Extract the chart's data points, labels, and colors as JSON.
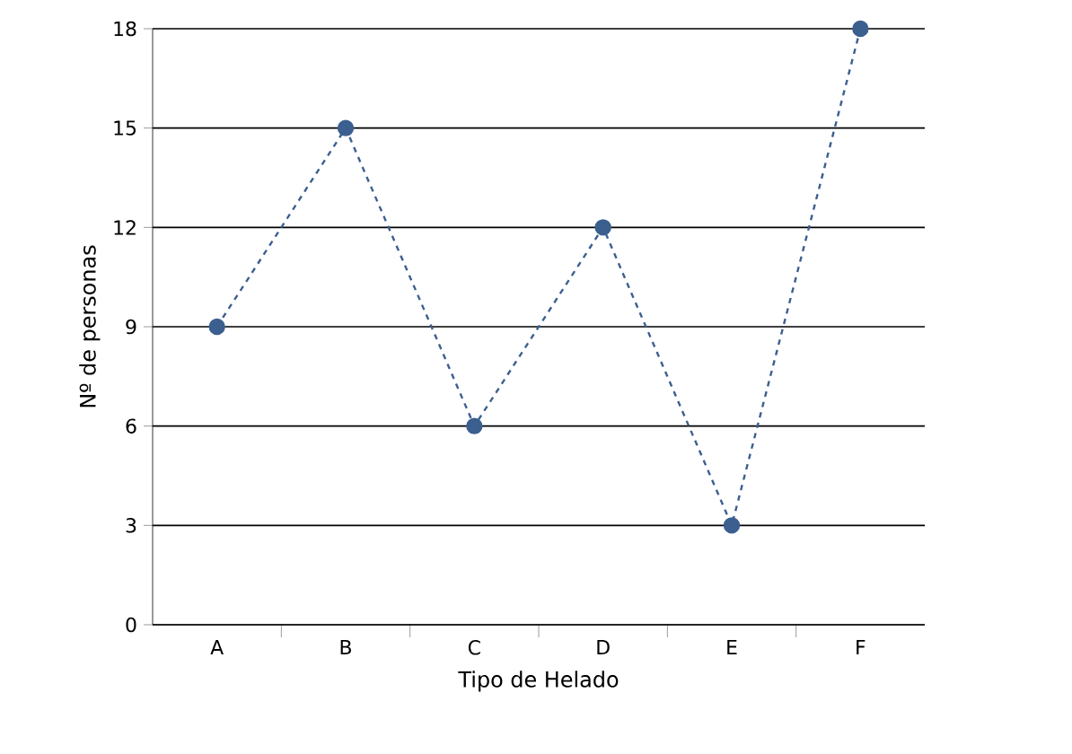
{
  "chart_data": {
    "type": "line",
    "xlabel": "Tipo de Helado",
    "ylabel": "Nº de personas",
    "categories": [
      "A",
      "B",
      "C",
      "D",
      "E",
      "F"
    ],
    "values": [
      9,
      15,
      6,
      12,
      3,
      18
    ],
    "color": "#3b5f8f",
    "ylim": [
      0,
      18
    ],
    "yticks": [
      0,
      3,
      6,
      9,
      12,
      15,
      18
    ],
    "grid": "y",
    "marker": "circle",
    "line_style": "dashed"
  }
}
